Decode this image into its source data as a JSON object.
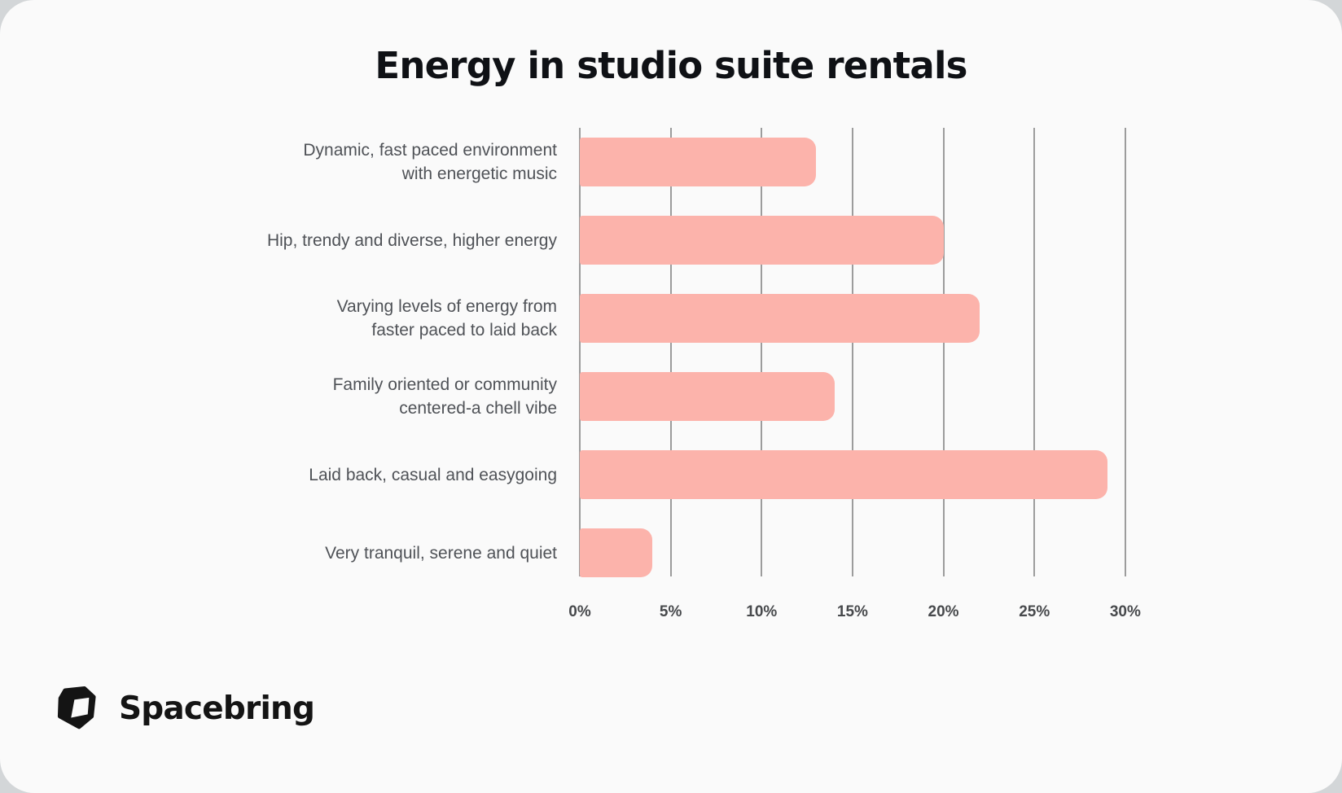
{
  "page": {
    "outer_background": "#d3d6d8",
    "card_background": "#fafafa"
  },
  "chart_data": {
    "type": "bar",
    "orientation": "horizontal",
    "title": "Energy in studio suite rentals",
    "categories": [
      "Dynamic, fast paced environment\nwith energetic music",
      "Hip, trendy and diverse, higher energy",
      "Varying levels of energy from\nfaster paced to laid back",
      "Family oriented or community\ncentered-a chell vibe",
      "Laid back, casual and easygoing",
      "Very tranquil, serene and quiet"
    ],
    "values": [
      13,
      20,
      22,
      14,
      29,
      4
    ],
    "unit": "%",
    "xlabel": "",
    "ylabel": "",
    "xlim": [
      0,
      33.5
    ],
    "x_tick_values": [
      0,
      5,
      10,
      15,
      20,
      25,
      30
    ],
    "x_tick_labels": [
      "0%",
      "5%",
      "10%",
      "15%",
      "20%",
      "25%",
      "30%"
    ],
    "grid": "vertical-gridlines-only",
    "legend": "none",
    "bar_color": "#fcb3ab",
    "gridline_color": "#9c9c9c",
    "label_color": "#4f5257",
    "tick_color": "#47494c",
    "title_color": "#0f1115"
  },
  "footer": {
    "brand": "Spacebring",
    "logo": "spacebring-cube-logo"
  }
}
